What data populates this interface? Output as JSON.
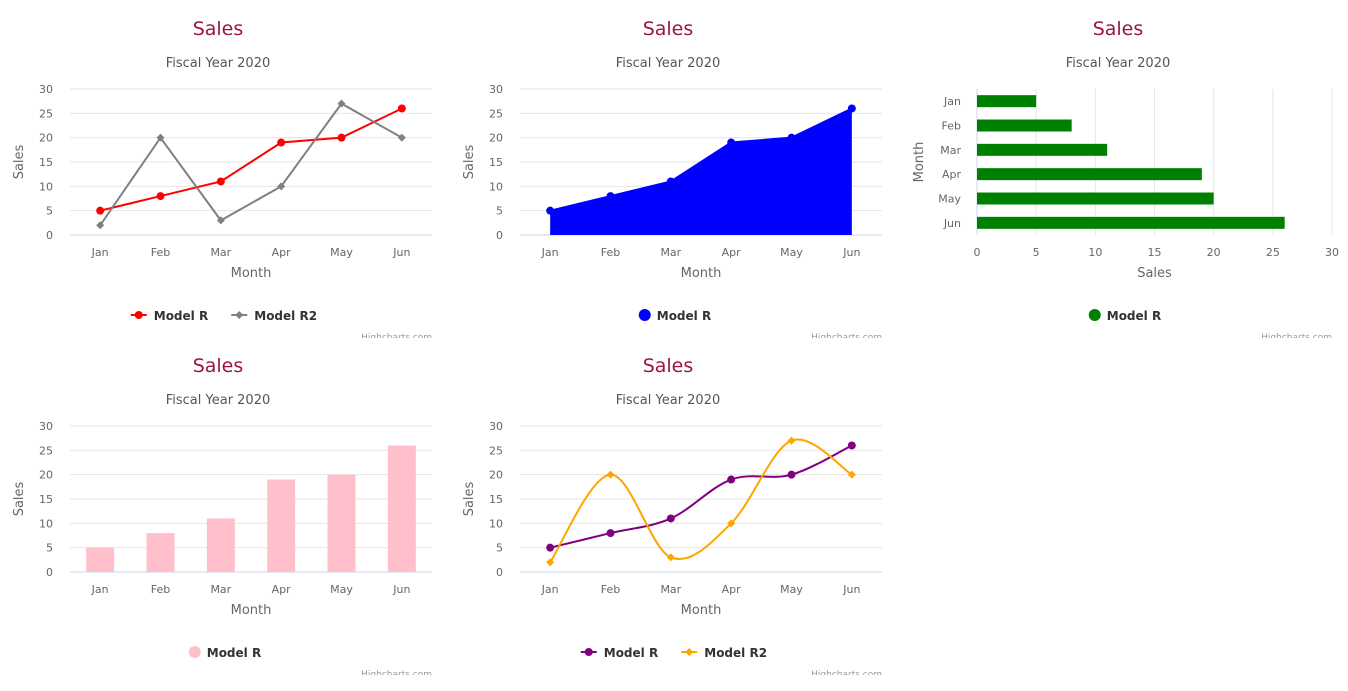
{
  "chart_data": [
    {
      "type": "line",
      "title": "Sales",
      "subtitle": "Fiscal Year 2020",
      "xlabel": "Month",
      "ylabel": "Sales",
      "categories": [
        "Jan",
        "Feb",
        "Mar",
        "Apr",
        "May",
        "Jun"
      ],
      "ylim": [
        0,
        30
      ],
      "yticks": [
        0,
        5,
        10,
        15,
        20,
        25,
        30
      ],
      "grid": true,
      "legend": "bottom-center",
      "credits": "Highcharts.com",
      "series": [
        {
          "name": "Model R",
          "values": [
            5,
            8,
            11,
            19,
            20,
            26
          ],
          "color": "#ff0000",
          "marker": "circle"
        },
        {
          "name": "Model R2",
          "values": [
            2,
            20,
            3,
            10,
            27,
            20
          ],
          "color": "#808080",
          "marker": "diamond"
        }
      ]
    },
    {
      "type": "area",
      "title": "Sales",
      "subtitle": "Fiscal Year 2020",
      "xlabel": "Month",
      "ylabel": "Sales",
      "categories": [
        "Jan",
        "Feb",
        "Mar",
        "Apr",
        "May",
        "Jun"
      ],
      "ylim": [
        0,
        30
      ],
      "yticks": [
        0,
        5,
        10,
        15,
        20,
        25,
        30
      ],
      "grid": true,
      "legend": "bottom-center",
      "credits": "Highcharts.com",
      "series": [
        {
          "name": "Model R",
          "values": [
            5,
            8,
            11,
            19,
            20,
            26
          ],
          "color": "#0000ff",
          "marker": "circle"
        }
      ]
    },
    {
      "type": "bar",
      "title": "Sales",
      "subtitle": "Fiscal Year 2020",
      "xlabel": "Month",
      "ylabel": "Sales",
      "categories": [
        "Jan",
        "Feb",
        "Mar",
        "Apr",
        "May",
        "Jun"
      ],
      "ylim": [
        0,
        30
      ],
      "yticks": [
        0,
        5,
        10,
        15,
        20,
        25,
        30
      ],
      "grid": true,
      "legend": "bottom-center",
      "credits": "Highcharts.com",
      "series": [
        {
          "name": "Model R",
          "values": [
            5,
            8,
            11,
            19,
            20,
            26
          ],
          "color": "#008000"
        }
      ]
    },
    {
      "type": "column",
      "title": "Sales",
      "subtitle": "Fiscal Year 2020",
      "xlabel": "Month",
      "ylabel": "Sales",
      "categories": [
        "Jan",
        "Feb",
        "Mar",
        "Apr",
        "May",
        "Jun"
      ],
      "ylim": [
        0,
        30
      ],
      "yticks": [
        0,
        5,
        10,
        15,
        20,
        25,
        30
      ],
      "grid": true,
      "legend": "bottom-center",
      "credits": "Highcharts.com",
      "series": [
        {
          "name": "Model R",
          "values": [
            5,
            8,
            11,
            19,
            20,
            26
          ],
          "color": "#ffc0cb"
        }
      ]
    },
    {
      "type": "spline",
      "title": "Sales",
      "subtitle": "Fiscal Year 2020",
      "xlabel": "Month",
      "ylabel": "Sales",
      "categories": [
        "Jan",
        "Feb",
        "Mar",
        "Apr",
        "May",
        "Jun"
      ],
      "ylim": [
        0,
        30
      ],
      "yticks": [
        0,
        5,
        10,
        15,
        20,
        25,
        30
      ],
      "grid": true,
      "legend": "bottom-center",
      "credits": "Highcharts.com",
      "series": [
        {
          "name": "Model R",
          "values": [
            5,
            8,
            11,
            19,
            20,
            26
          ],
          "color": "#800080",
          "marker": "circle"
        },
        {
          "name": "Model R2",
          "values": [
            2,
            20,
            3,
            10,
            27,
            20
          ],
          "color": "#ffa500",
          "marker": "diamond"
        }
      ]
    }
  ]
}
